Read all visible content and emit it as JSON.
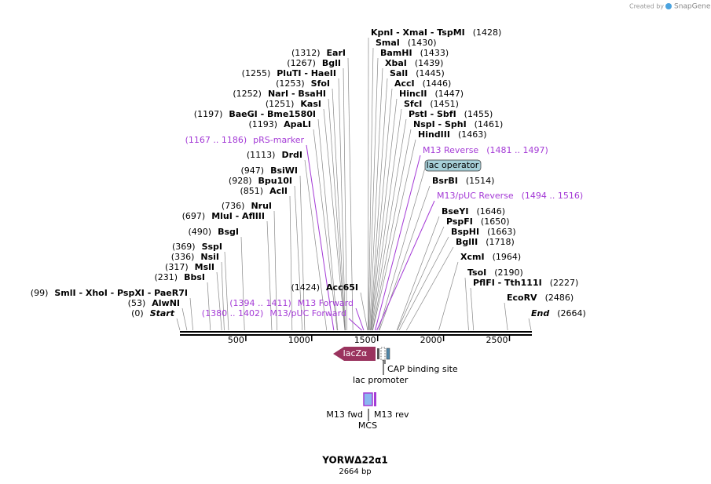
{
  "header": {
    "credit": "Created by",
    "brand": "SnapGene"
  },
  "map": {
    "name": "YORWΔ22α1",
    "length": "2664 bp",
    "axis_ticks": [
      500,
      1000,
      1500,
      2000,
      2500
    ],
    "right_labels": [
      {
        "name": "KpnI  - XmaI  - TspMI",
        "position": "(1428)"
      },
      {
        "name": "SmaI",
        "position": "(1430)"
      },
      {
        "name": "BamHI",
        "position": "(1433)"
      },
      {
        "name": "XbaI",
        "position": "(1439)"
      },
      {
        "name": "SalI",
        "position": "(1445)"
      },
      {
        "name": "AccI",
        "position": "(1446)"
      },
      {
        "name": "HincII",
        "position": "(1447)"
      },
      {
        "name": "SfcI",
        "position": "(1451)"
      },
      {
        "name": "PstI  - SbfI",
        "position": "(1455)"
      },
      {
        "name": "NspI  - SphI",
        "position": "(1461)"
      },
      {
        "name": "HindIII",
        "position": "(1463)"
      },
      {
        "name": "M13 Reverse",
        "position": "(1481 .. 1497)",
        "color": "#a43ad6"
      },
      {
        "name": "BsrBI",
        "position": "(1514)"
      },
      {
        "name": "M13/pUC Reverse",
        "position": "(1494 .. 1516)",
        "color": "#a43ad6"
      },
      {
        "name": "BseYI",
        "position": "(1646)"
      },
      {
        "name": "PspFI",
        "position": "(1650)"
      },
      {
        "name": "BspHI",
        "position": "(1663)"
      },
      {
        "name": "BglII",
        "position": "(1718)"
      },
      {
        "name": "XcmI",
        "position": "(1964)"
      },
      {
        "name": "TsoI",
        "position": "(2190)"
      },
      {
        "name": "PflFI  - Tth111I",
        "position": "(2227)"
      },
      {
        "name": "EcoRV",
        "position": "(2486)"
      },
      {
        "name": "End",
        "position": "(2664)"
      }
    ],
    "left_labels": [
      {
        "name": "EarI",
        "position": "(1312)"
      },
      {
        "name": "BglI",
        "position": "(1267)"
      },
      {
        "name": "PluTI  - HaeII",
        "position": "(1255)"
      },
      {
        "name": "SfoI",
        "position": "(1253)"
      },
      {
        "name": "NarI  - BsaHI",
        "position": "(1252)"
      },
      {
        "name": "KasI",
        "position": "(1251)"
      },
      {
        "name": "BaeGI  - Bme1580I",
        "position": "(1197)"
      },
      {
        "name": "ApaLI",
        "position": "(1193)"
      },
      {
        "name": "pRS-marker",
        "position": "(1167 .. 1186)",
        "color": "#a43ad6"
      },
      {
        "name": "DrdI",
        "position": "(1113)"
      },
      {
        "name": "BsiWI",
        "position": "(947)"
      },
      {
        "name": "Bpu10I",
        "position": "(928)"
      },
      {
        "name": "AclI",
        "position": "(851)"
      },
      {
        "name": "NruI",
        "position": "(736)"
      },
      {
        "name": "MluI  - AflIII",
        "position": "(697)"
      },
      {
        "name": "BsgI",
        "position": "(490)"
      },
      {
        "name": "SspI",
        "position": "(369)"
      },
      {
        "name": "NsiI",
        "position": "(336)"
      },
      {
        "name": "MslI",
        "position": "(317)"
      },
      {
        "name": "BbsI",
        "position": "(231)"
      },
      {
        "name": "SmlI  - XhoI  - PspXI  - PaeR7I",
        "position": "(99)"
      },
      {
        "name": "AlwNI",
        "position": "(53)"
      },
      {
        "name": "Start",
        "position": "(0)"
      }
    ],
    "inner_labels": [
      {
        "name": "Acc65I",
        "position": "(1424)"
      },
      {
        "name": "M13 Forward",
        "position": "(1394 .. 1411)",
        "color": "#a43ad6"
      },
      {
        "name": "M13/pUC Forward",
        "position": "(1380 .. 1402)",
        "color": "#a43ad6"
      }
    ],
    "lac_operator": "lac operator",
    "features": {
      "lacz": "lacZα",
      "cap": "CAP binding site",
      "promoter": "lac promoter",
      "m13fwd": "M13 fwd",
      "m13rev": "M13 rev",
      "mcs": "MCS"
    }
  }
}
